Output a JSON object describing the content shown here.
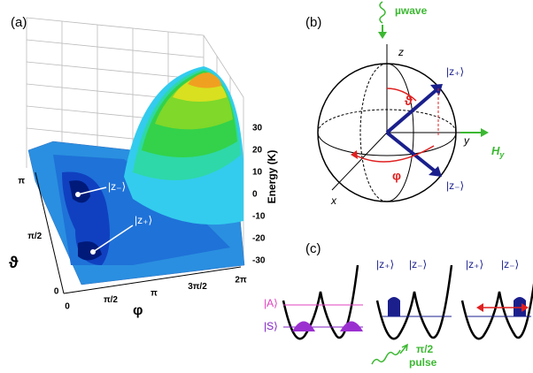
{
  "panel_a": {
    "label": "(a)",
    "z_axis_label": "Energy (K)",
    "z_ticks": [
      "30",
      "20",
      "10",
      "0",
      "-10",
      "-20",
      "-30"
    ],
    "theta_label": "ϑ",
    "theta_ticks": [
      "π",
      "π/2",
      "0"
    ],
    "phi_label": "φ",
    "phi_ticks": [
      "0",
      "π/2",
      "π",
      "3π/2",
      "2π"
    ],
    "state_labels": [
      "|z₋⟩",
      "|z₊⟩"
    ]
  },
  "panel_b": {
    "label": "(b)",
    "microwave": "µwave",
    "axes": {
      "z": "z",
      "y": "y",
      "x": "x"
    },
    "field": {
      "symbol": "H",
      "subscript": "y"
    },
    "states": [
      "|z₊⟩",
      "|z₋⟩"
    ],
    "angles": {
      "theta": "ϑ",
      "phi": "φ"
    }
  },
  "panel_c": {
    "label": "(c)",
    "levels": [
      "|A⟩",
      "|S⟩"
    ],
    "well_2_labels": [
      "|z₊⟩",
      "|z₋⟩"
    ],
    "well_3_labels": [
      "|z₊⟩",
      "|z₋⟩"
    ],
    "pulse": [
      "π/2",
      "pulse"
    ]
  }
}
